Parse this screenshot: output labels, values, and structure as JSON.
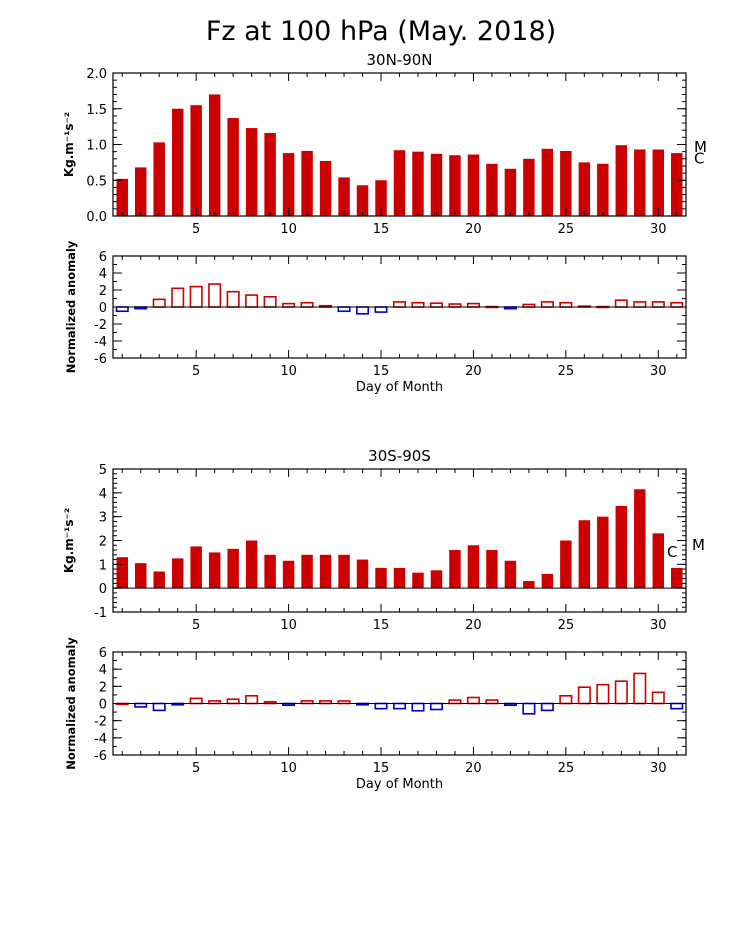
{
  "title": "Fz at 100 hPa (May. 2018)",
  "colors": {
    "bar": "#cc0000",
    "pos_anom": "#cc0000",
    "neg_anom": "#0000cc",
    "axis": "#000000"
  },
  "chart_data": [
    {
      "type": "bar",
      "title": "30N-90N",
      "ylabel": "Kg.m⁻¹s⁻²",
      "ylim": [
        0,
        2.0
      ],
      "yticks": [
        "0.0",
        "0.5",
        "1.0",
        "1.5",
        "2.0"
      ],
      "xlim": [
        0.5,
        31.5
      ],
      "xticks": [
        "5",
        "10",
        "15",
        "20",
        "25",
        "30"
      ],
      "x": [
        1,
        2,
        3,
        4,
        5,
        6,
        7,
        8,
        9,
        10,
        11,
        12,
        13,
        14,
        15,
        16,
        17,
        18,
        19,
        20,
        21,
        22,
        23,
        24,
        25,
        26,
        27,
        28,
        29,
        30,
        31
      ],
      "values": [
        0.52,
        0.68,
        1.03,
        1.5,
        1.55,
        1.7,
        1.37,
        1.23,
        1.16,
        0.88,
        0.91,
        0.77,
        0.54,
        0.43,
        0.5,
        0.92,
        0.9,
        0.87,
        0.85,
        0.86,
        0.73,
        0.66,
        0.8,
        0.94,
        0.91,
        0.75,
        0.73,
        0.99,
        0.93,
        0.93,
        0.88
      ],
      "markers": [
        {
          "label": "M",
          "y": 0.98
        },
        {
          "label": "C",
          "y": 0.82
        }
      ]
    },
    {
      "type": "bar",
      "ylabel": "Normalized anomaly",
      "xlabel": "Day of Month",
      "ylim": [
        -6,
        6
      ],
      "yticks": [
        "-6",
        "-4",
        "-2",
        "0",
        "2",
        "4",
        "6"
      ],
      "xlim": [
        0.5,
        31.5
      ],
      "xticks": [
        "5",
        "10",
        "15",
        "20",
        "25",
        "30"
      ],
      "x": [
        1,
        2,
        3,
        4,
        5,
        6,
        7,
        8,
        9,
        10,
        11,
        12,
        13,
        14,
        15,
        16,
        17,
        18,
        19,
        20,
        21,
        22,
        23,
        24,
        25,
        26,
        27,
        28,
        29,
        30,
        31
      ],
      "values": [
        -0.5,
        -0.2,
        0.9,
        2.2,
        2.4,
        2.7,
        1.8,
        1.4,
        1.2,
        0.4,
        0.5,
        0.15,
        -0.5,
        -0.8,
        -0.6,
        0.6,
        0.5,
        0.45,
        0.35,
        0.4,
        0.05,
        -0.2,
        0.3,
        0.6,
        0.5,
        0.1,
        0.05,
        0.8,
        0.6,
        0.6,
        0.5
      ]
    },
    {
      "type": "bar",
      "title": "30S-90S",
      "ylabel": "Kg.m⁻¹s⁻²",
      "ylim": [
        -1,
        5
      ],
      "yticks": [
        "-1",
        "0",
        "1",
        "2",
        "3",
        "4",
        "5"
      ],
      "xlim": [
        0.5,
        31.5
      ],
      "xticks": [
        "5",
        "10",
        "15",
        "20",
        "25",
        "30"
      ],
      "x": [
        1,
        2,
        3,
        4,
        5,
        6,
        7,
        8,
        9,
        10,
        11,
        12,
        13,
        14,
        15,
        16,
        17,
        18,
        19,
        20,
        21,
        22,
        23,
        24,
        25,
        26,
        27,
        28,
        29,
        30,
        31
      ],
      "values": [
        1.3,
        1.05,
        0.7,
        1.25,
        1.75,
        1.5,
        1.65,
        2.0,
        1.4,
        1.15,
        1.4,
        1.4,
        1.4,
        1.2,
        0.85,
        0.85,
        0.65,
        0.75,
        1.6,
        1.8,
        1.6,
        1.15,
        0.3,
        0.6,
        2.0,
        2.85,
        3.0,
        3.45,
        4.15,
        2.3,
        0.85
      ],
      "markers": [
        {
          "label": "C",
          "y": 1.55
        },
        {
          "label": "M",
          "y": 1.85
        }
      ]
    },
    {
      "type": "bar",
      "ylabel": "Normalized anomaly",
      "xlabel": "Day of Month",
      "ylim": [
        -6,
        6
      ],
      "yticks": [
        "-6",
        "-4",
        "-2",
        "0",
        "2",
        "4",
        "6"
      ],
      "xlim": [
        0.5,
        31.5
      ],
      "xticks": [
        "5",
        "10",
        "15",
        "20",
        "25",
        "30"
      ],
      "x": [
        1,
        2,
        3,
        4,
        5,
        6,
        7,
        8,
        9,
        10,
        11,
        12,
        13,
        14,
        15,
        16,
        17,
        18,
        19,
        20,
        21,
        22,
        23,
        24,
        25,
        26,
        27,
        28,
        29,
        30,
        31
      ],
      "values": [
        0.0,
        -0.4,
        -0.8,
        -0.15,
        0.6,
        0.3,
        0.5,
        0.9,
        0.2,
        -0.2,
        0.3,
        0.3,
        0.3,
        -0.15,
        -0.6,
        -0.6,
        -0.85,
        -0.7,
        0.4,
        0.7,
        0.4,
        -0.2,
        -1.2,
        -0.8,
        0.9,
        1.9,
        2.2,
        2.6,
        3.5,
        1.3,
        -0.6
      ]
    }
  ]
}
